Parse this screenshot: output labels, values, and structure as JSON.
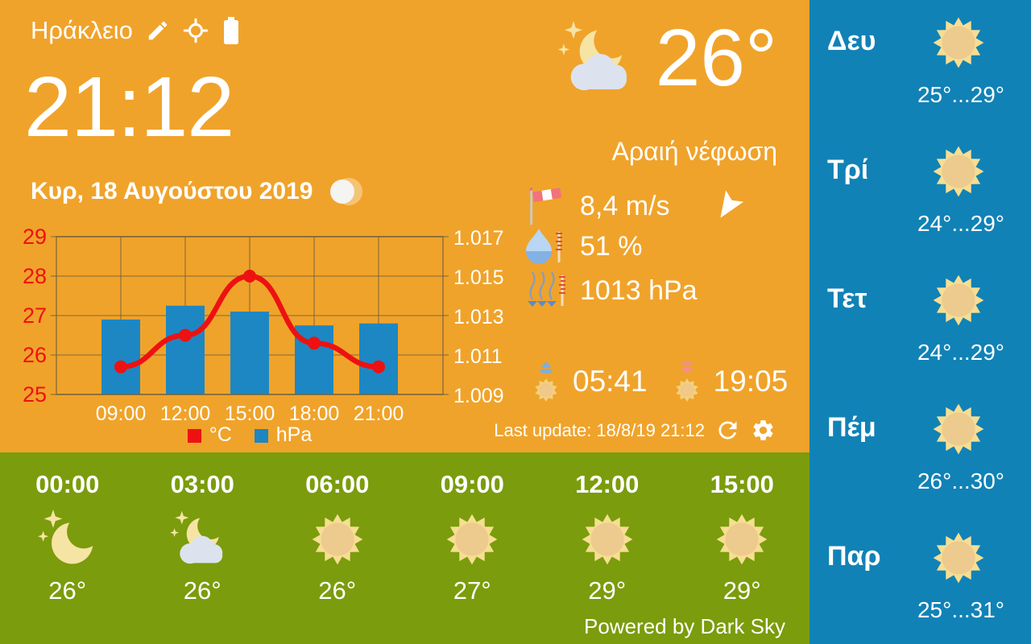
{
  "header": {
    "city": "Ηράκλειο"
  },
  "clock": {
    "time": "21:12",
    "date": "Κυρ, 18 Αυγούστου 2019"
  },
  "current": {
    "temp": "26°",
    "condition": "Αραιή νέφωση",
    "wind_speed": "8,4 m/s",
    "humidity": "51 %",
    "pressure": "1013 hPa",
    "sunrise": "05:41",
    "sunset": "19:05",
    "icon": "moon-stars-cloud"
  },
  "chart_data": {
    "type": "bar",
    "note": "combo chart: red smoothed line (temperature, left axis) over blue bars (pressure, right axis)",
    "categories": [
      "09:00",
      "12:00",
      "15:00",
      "18:00",
      "21:00"
    ],
    "series": [
      {
        "name": "°C",
        "type": "line",
        "axis": "left",
        "color": "#EE1111",
        "values": [
          25.7,
          26.5,
          28.0,
          26.3,
          25.7
        ]
      },
      {
        "name": "hPa",
        "type": "bar",
        "axis": "right",
        "color": "#1D87C3",
        "values": [
          1012.8,
          1013.5,
          1013.2,
          1012.5,
          1012.6
        ]
      }
    ],
    "left_axis": {
      "min": 25,
      "max": 29,
      "tick_labels": [
        "29",
        "28",
        "27",
        "26",
        "25"
      ],
      "color": "#EE1111"
    },
    "right_axis": {
      "min": 1009,
      "max": 1017,
      "tick_labels": [
        "1.017",
        "1.015",
        "1.013",
        "1.011",
        "1.009"
      ],
      "color": "#FFFFFF"
    },
    "legend": [
      {
        "label": "°C",
        "color": "#EE1111"
      },
      {
        "label": "hPa",
        "color": "#1D87C3"
      }
    ],
    "grid": true,
    "legend_position": "bottom"
  },
  "footer": {
    "last_update": "Last update: 18/8/19 21:12",
    "powered_by": "Powered by Dark Sky"
  },
  "hourly": [
    {
      "time": "00:00",
      "icon": "moon-stars",
      "temp": "26°"
    },
    {
      "time": "03:00",
      "icon": "moon-stars-cloud",
      "temp": "26°"
    },
    {
      "time": "06:00",
      "icon": "sun",
      "temp": "26°"
    },
    {
      "time": "09:00",
      "icon": "sun",
      "temp": "27°"
    },
    {
      "time": "12:00",
      "icon": "sun",
      "temp": "29°"
    },
    {
      "time": "15:00",
      "icon": "sun",
      "temp": "29°"
    }
  ],
  "daily": [
    {
      "day": "Δευ",
      "icon": "sun",
      "range": "25°...29°"
    },
    {
      "day": "Τρί",
      "icon": "sun",
      "range": "24°...29°"
    },
    {
      "day": "Τετ",
      "icon": "sun",
      "range": "24°...29°"
    },
    {
      "day": "Πέμ",
      "icon": "sun",
      "range": "26°...30°"
    },
    {
      "day": "Παρ",
      "icon": "sun",
      "range": "25°...31°"
    }
  ],
  "colors": {
    "bg_main": "#F0A32A",
    "bg_hourly": "#7B9C0C",
    "bg_daily": "#1182B6",
    "bar_blue": "#1D87C3",
    "line_red": "#EE1111",
    "text": "#FFFFFF"
  }
}
